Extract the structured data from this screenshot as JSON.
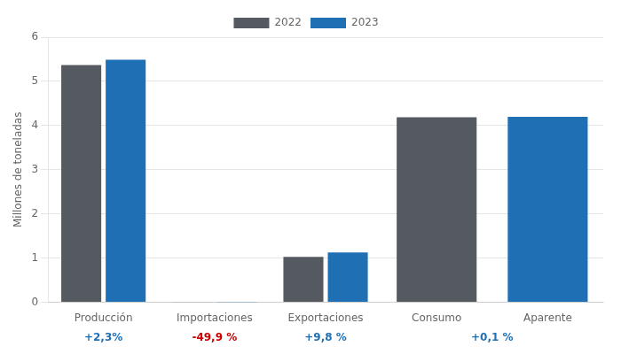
{
  "chart_data": {
    "type": "bar",
    "categories": [
      "Producción",
      "Importaciones",
      "Exportaciones",
      "Consumo",
      "Aparente"
    ],
    "series": [
      {
        "name": "2022",
        "color": "#555a60",
        "values": [
          5.37,
          0.005,
          1.03,
          4.19,
          null
        ]
      },
      {
        "name": "2023",
        "color": "#1f6fb5",
        "values": [
          5.49,
          0.003,
          1.13,
          null,
          4.2
        ]
      }
    ],
    "ylabel": "Millones de toneladas",
    "ylim": [
      0,
      6
    ],
    "yticks": [
      0,
      1,
      2,
      3,
      4,
      5,
      6
    ],
    "grid": true,
    "legend": "top",
    "annotations": [
      {
        "text": "+2,3%",
        "color": "#1f6fb5",
        "categories": [
          "Producción"
        ]
      },
      {
        "text": "-49,9 %",
        "color": "#cc0000",
        "categories": [
          "Importaciones"
        ]
      },
      {
        "text": "+9,8 %",
        "color": "#1f6fb5",
        "categories": [
          "Exportaciones"
        ]
      },
      {
        "text": "+0,1 %",
        "color": "#1f6fb5",
        "categories": [
          "Consumo",
          "Aparente"
        ]
      }
    ]
  }
}
